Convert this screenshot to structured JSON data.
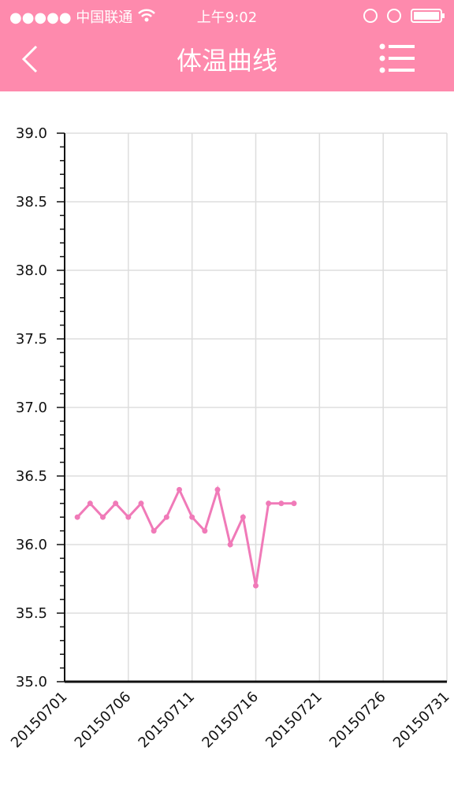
{
  "status_bar": {
    "carrier": "●●●●● 中国联通",
    "time": "上午9:02"
  },
  "header": {
    "title": "体温曲线"
  },
  "chart_data": {
    "type": "line",
    "x": [
      20150702,
      20150703,
      20150704,
      20150705,
      20150706,
      20150707,
      20150708,
      20150709,
      20150710,
      20150711,
      20150712,
      20150713,
      20150714,
      20150715,
      20150716,
      20150717,
      20150718,
      20150719
    ],
    "series": [
      {
        "color": "#f07ab8",
        "values": [
          36.2,
          36.3,
          36.2,
          36.3,
          36.2,
          36.3,
          36.1,
          36.2,
          36.4,
          36.2,
          36.1,
          36.4,
          36.0,
          36.2,
          35.7,
          36.3,
          36.3,
          36.3
        ]
      }
    ],
    "xlim": [
      20150701,
      20150731
    ],
    "xticks": [
      20150701,
      20150706,
      20150711,
      20150716,
      20150721,
      20150726,
      20150731
    ],
    "ylim": [
      35,
      39
    ],
    "yticks": [
      {
        "value": 35,
        "label": "35.0"
      },
      {
        "value": 35.5,
        "label": "35.5"
      },
      {
        "value": 36,
        "label": "36.0"
      },
      {
        "value": 36.5,
        "label": "36.5"
      },
      {
        "value": 37,
        "label": "37.0"
      },
      {
        "value": 37.5,
        "label": "37.5"
      },
      {
        "value": 38,
        "label": "38.0"
      },
      {
        "value": 38.5,
        "label": "38.5"
      },
      {
        "value": 39,
        "label": "39.0"
      }
    ],
    "grid": true
  }
}
